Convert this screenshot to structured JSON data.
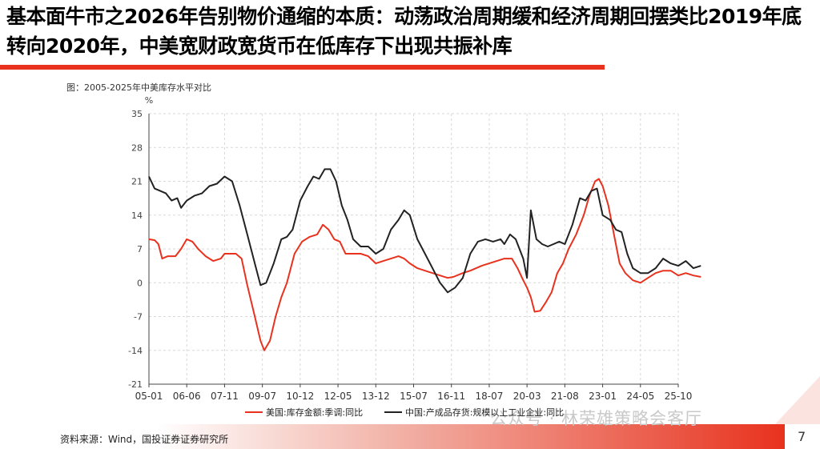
{
  "title": "基本面牛市之2026年告别物价通缩的本质：动荡政治周期缓和经济周期回摆类比2019年底转向2020年，中美宽财政宽货币在低库存下出现共振补库",
  "figure_label": "图：2005-2025年中美库存水平对比",
  "source": "资料来源：Wind，国投证券证券研究所",
  "page_number": "7",
  "watermark": "公众号 · 林荣雄策略会客厅",
  "colors": {
    "accent": "#e8321e",
    "us_series": "#e8321e",
    "cn_series": "#222222"
  },
  "chart_data": {
    "type": "line",
    "ylabel": "%",
    "ylim": [
      -21,
      35
    ],
    "yticks": [
      -21,
      -14,
      -7,
      0,
      7,
      14,
      21,
      28,
      35
    ],
    "x_ticks": [
      "05-01",
      "06-06",
      "07-11",
      "09-07",
      "10-12",
      "12-05",
      "13-12",
      "15-07",
      "16-11",
      "18-07",
      "20-03",
      "21-08",
      "23-01",
      "24-05",
      "25-10"
    ],
    "grid": true,
    "legend_position": "bottom",
    "series": [
      {
        "name": "美国:库存金额:季调:同比",
        "color": "#e8321e",
        "points": [
          [
            0,
            9
          ],
          [
            0.15,
            8.8
          ],
          [
            0.25,
            8
          ],
          [
            0.35,
            5
          ],
          [
            0.5,
            5.5
          ],
          [
            0.7,
            5.5
          ],
          [
            0.85,
            7
          ],
          [
            1.0,
            9
          ],
          [
            1.15,
            8.5
          ],
          [
            1.3,
            7
          ],
          [
            1.5,
            5.5
          ],
          [
            1.7,
            4.5
          ],
          [
            1.9,
            5
          ],
          [
            2.0,
            6
          ],
          [
            2.3,
            6
          ],
          [
            2.45,
            5
          ],
          [
            2.6,
            -0.5
          ],
          [
            2.8,
            -7
          ],
          [
            2.95,
            -12
          ],
          [
            3.05,
            -14
          ],
          [
            3.2,
            -12
          ],
          [
            3.35,
            -7
          ],
          [
            3.5,
            -3
          ],
          [
            3.65,
            0
          ],
          [
            3.85,
            6
          ],
          [
            4.05,
            8.5
          ],
          [
            4.25,
            9.5
          ],
          [
            4.45,
            10
          ],
          [
            4.6,
            12
          ],
          [
            4.75,
            11
          ],
          [
            4.9,
            9
          ],
          [
            5.05,
            8.5
          ],
          [
            5.2,
            6
          ],
          [
            5.4,
            6
          ],
          [
            5.6,
            6
          ],
          [
            5.8,
            5.5
          ],
          [
            6.0,
            4
          ],
          [
            6.2,
            4.5
          ],
          [
            6.4,
            5
          ],
          [
            6.6,
            5.5
          ],
          [
            6.75,
            5
          ],
          [
            6.9,
            4
          ],
          [
            7.1,
            3
          ],
          [
            7.3,
            2.5
          ],
          [
            7.5,
            2
          ],
          [
            7.7,
            1.5
          ],
          [
            7.9,
            1
          ],
          [
            8.05,
            1.2
          ],
          [
            8.3,
            2
          ],
          [
            8.5,
            2.5
          ],
          [
            8.8,
            3.5
          ],
          [
            9.0,
            4
          ],
          [
            9.2,
            4.5
          ],
          [
            9.4,
            5
          ],
          [
            9.6,
            5
          ],
          [
            9.75,
            3
          ],
          [
            9.9,
            0.5
          ],
          [
            10.0,
            -1
          ],
          [
            10.1,
            -3
          ],
          [
            10.2,
            -6
          ],
          [
            10.35,
            -5.8
          ],
          [
            10.5,
            -4
          ],
          [
            10.65,
            -2
          ],
          [
            10.8,
            2
          ],
          [
            10.95,
            4
          ],
          [
            11.1,
            7
          ],
          [
            11.3,
            10
          ],
          [
            11.5,
            14
          ],
          [
            11.65,
            18
          ],
          [
            11.8,
            21
          ],
          [
            11.9,
            21.5
          ],
          [
            12.0,
            20
          ],
          [
            12.15,
            16
          ],
          [
            12.3,
            10
          ],
          [
            12.45,
            4
          ],
          [
            12.6,
            2
          ],
          [
            12.8,
            0.5
          ],
          [
            13.0,
            0
          ],
          [
            13.2,
            1
          ],
          [
            13.4,
            2
          ],
          [
            13.6,
            2.5
          ],
          [
            13.8,
            2.5
          ],
          [
            14.0,
            1.5
          ],
          [
            14.2,
            2
          ],
          [
            14.4,
            1.5
          ],
          [
            14.6,
            1.2
          ]
        ]
      },
      {
        "name": "中国:产成品存货:规模以上工业企业:同比",
        "color": "#222222",
        "points": [
          [
            0,
            22
          ],
          [
            0.15,
            19.5
          ],
          [
            0.3,
            19
          ],
          [
            0.45,
            18.5
          ],
          [
            0.6,
            17
          ],
          [
            0.75,
            17.5
          ],
          [
            0.85,
            15.5
          ],
          [
            1.0,
            17
          ],
          [
            1.2,
            18
          ],
          [
            1.4,
            18.5
          ],
          [
            1.6,
            20
          ],
          [
            1.8,
            20.5
          ],
          [
            2.0,
            22
          ],
          [
            2.2,
            21
          ],
          [
            2.4,
            16
          ],
          [
            2.6,
            10
          ],
          [
            2.8,
            4
          ],
          [
            2.95,
            -0.5
          ],
          [
            3.1,
            0
          ],
          [
            3.3,
            4
          ],
          [
            3.5,
            9
          ],
          [
            3.65,
            9.5
          ],
          [
            3.8,
            11
          ],
          [
            4.0,
            17
          ],
          [
            4.2,
            20
          ],
          [
            4.35,
            22
          ],
          [
            4.5,
            21.5
          ],
          [
            4.65,
            23.5
          ],
          [
            4.8,
            23.5
          ],
          [
            4.95,
            21
          ],
          [
            5.1,
            16
          ],
          [
            5.25,
            13
          ],
          [
            5.4,
            9
          ],
          [
            5.6,
            7.5
          ],
          [
            5.8,
            7.5
          ],
          [
            6.0,
            6
          ],
          [
            6.2,
            7
          ],
          [
            6.4,
            11
          ],
          [
            6.6,
            13
          ],
          [
            6.75,
            15
          ],
          [
            6.9,
            14
          ],
          [
            7.1,
            9
          ],
          [
            7.3,
            6
          ],
          [
            7.5,
            3
          ],
          [
            7.7,
            0
          ],
          [
            7.9,
            -2
          ],
          [
            8.1,
            -1
          ],
          [
            8.3,
            1
          ],
          [
            8.5,
            6
          ],
          [
            8.7,
            8.5
          ],
          [
            8.9,
            9
          ],
          [
            9.1,
            8.5
          ],
          [
            9.3,
            9
          ],
          [
            9.4,
            8
          ],
          [
            9.55,
            10
          ],
          [
            9.7,
            9
          ],
          [
            9.9,
            5
          ],
          [
            10.0,
            1
          ],
          [
            10.1,
            15
          ],
          [
            10.25,
            9
          ],
          [
            10.4,
            8
          ],
          [
            10.55,
            7.5
          ],
          [
            10.7,
            8
          ],
          [
            10.85,
            8.5
          ],
          [
            11.0,
            8
          ],
          [
            11.2,
            12
          ],
          [
            11.4,
            17.5
          ],
          [
            11.55,
            17
          ],
          [
            11.7,
            19
          ],
          [
            11.85,
            19.5
          ],
          [
            12.0,
            14
          ],
          [
            12.2,
            13
          ],
          [
            12.35,
            11
          ],
          [
            12.5,
            10.5
          ],
          [
            12.65,
            6
          ],
          [
            12.8,
            3
          ],
          [
            13.0,
            2
          ],
          [
            13.2,
            2
          ],
          [
            13.4,
            3
          ],
          [
            13.6,
            5
          ],
          [
            13.8,
            4
          ],
          [
            14.0,
            3.5
          ],
          [
            14.2,
            4.5
          ],
          [
            14.4,
            3
          ],
          [
            14.6,
            3.5
          ]
        ]
      }
    ]
  }
}
